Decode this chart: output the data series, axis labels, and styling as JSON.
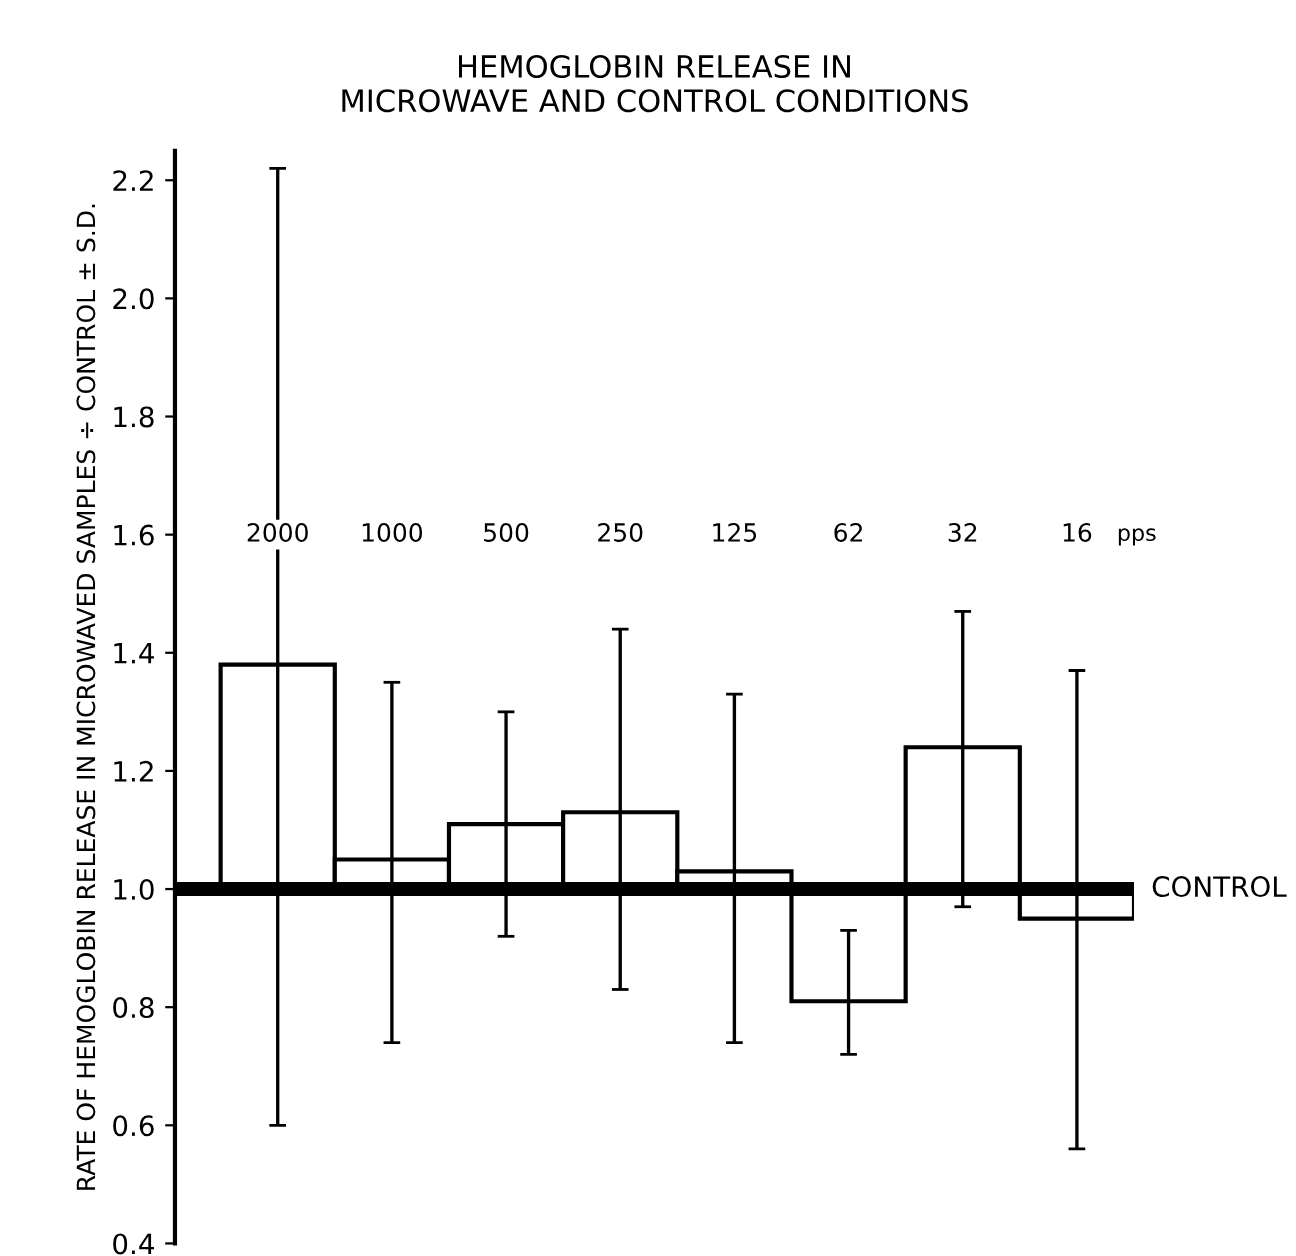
{
  "chart_data": {
    "type": "bar",
    "title": "HEMOGLOBIN RELEASE IN\nMICROWAVE AND CONTROL CONDITIONS",
    "ylabel": "RATE OF HEMOGLOBIN RELEASE IN MICROWAVED SAMPLES ÷ CONTROL ± S.D.",
    "categories": [
      "2000",
      "1000",
      "500",
      "250",
      "125",
      "62",
      "32",
      "16"
    ],
    "base": [
      1.0,
      1.0,
      1.0,
      1.0,
      1.0,
      1.0,
      1.0,
      1.0
    ],
    "values": [
      0.38,
      0.05,
      0.11,
      0.13,
      0.03,
      -0.19,
      0.24,
      -0.05
    ],
    "color": "#000000",
    "errors": [
      [
        0.6,
        2.22
      ],
      [
        0.74,
        1.35
      ],
      [
        0.92,
        1.3
      ],
      [
        0.83,
        1.44
      ],
      [
        0.74,
        1.33
      ],
      [
        0.72,
        0.93
      ],
      [
        0.97,
        1.47
      ],
      [
        0.56,
        1.37
      ]
    ],
    "ylim": [
      0.4,
      2.25
    ],
    "yticks": [
      0.4,
      0.6,
      0.8,
      {
        "value": 1.0,
        "label": "1.0"
      },
      1.2,
      1.4,
      1.6,
      1.8,
      {
        "value": 2.0,
        "label": "2.0"
      },
      2.2
    ],
    "ref_lines": [
      {
        "axis": "y",
        "value": 1.0,
        "label": "CONTROL",
        "color": "#000000"
      }
    ],
    "annotations": [
      "pps"
    ],
    "grid": false,
    "legend": false
  }
}
